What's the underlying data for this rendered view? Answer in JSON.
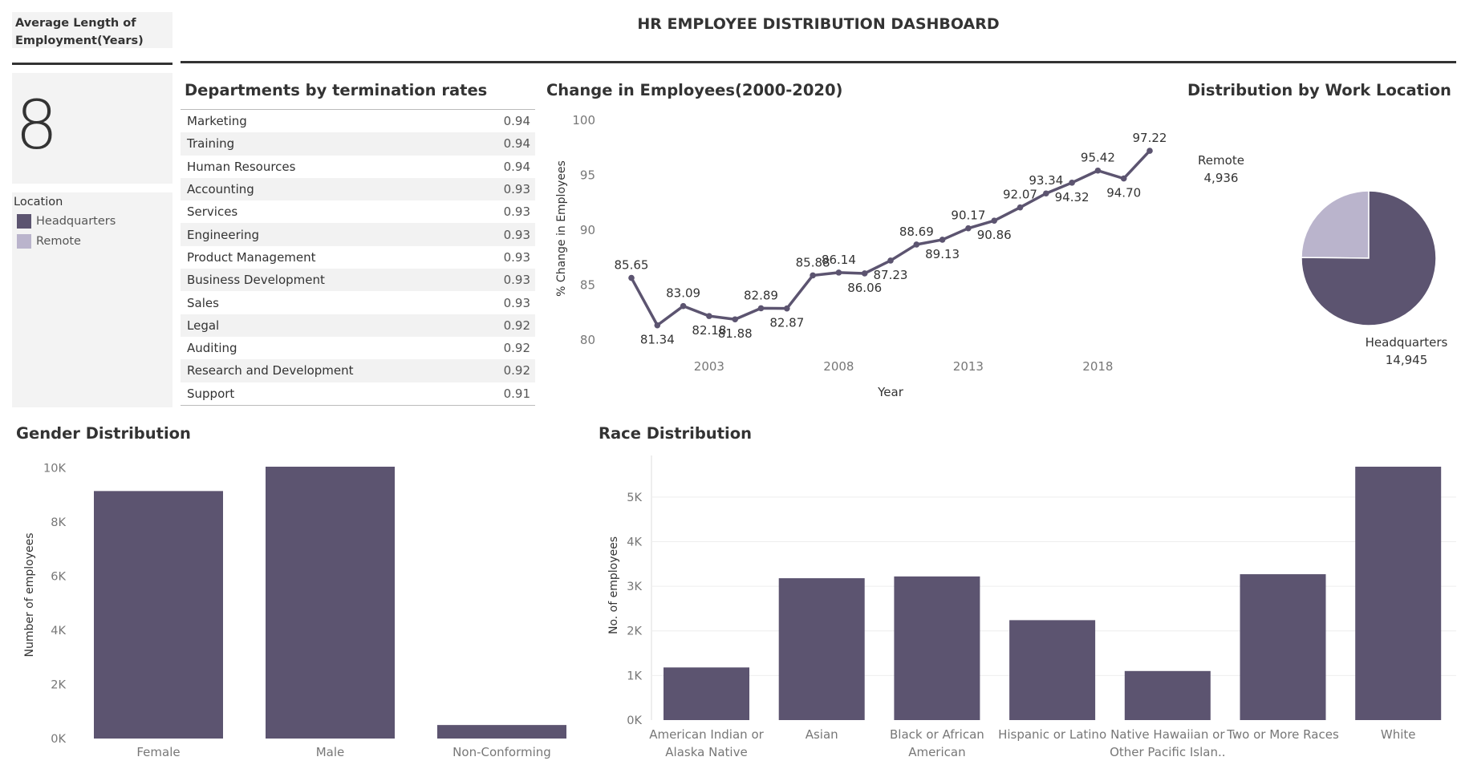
{
  "header": {
    "title": "HR EMPLOYEE DISTRIBUTION DASHBOARD"
  },
  "kpi": {
    "label": "Average Length of Employment(Years)",
    "label_line1": "Average Length of",
    "label_line2": "Employment(Years)",
    "value": "8"
  },
  "legend": {
    "title": "Location",
    "items": [
      {
        "label": "Headquarters",
        "color": "#5c5470"
      },
      {
        "label": "Remote",
        "color": "#bab4cc"
      }
    ]
  },
  "departments": {
    "title": "Departments by termination rates",
    "rows": [
      {
        "name": "Marketing",
        "value": "0.94"
      },
      {
        "name": "Training",
        "value": "0.94"
      },
      {
        "name": "Human Resources",
        "value": "0.94"
      },
      {
        "name": "Accounting",
        "value": "0.93"
      },
      {
        "name": "Services",
        "value": "0.93"
      },
      {
        "name": "Engineering",
        "value": "0.93"
      },
      {
        "name": "Product Management",
        "value": "0.93"
      },
      {
        "name": "Business Development",
        "value": "0.93"
      },
      {
        "name": "Sales",
        "value": "0.93"
      },
      {
        "name": "Legal",
        "value": "0.92"
      },
      {
        "name": "Auditing",
        "value": "0.92"
      },
      {
        "name": "Research and Development",
        "value": "0.92"
      },
      {
        "name": "Support",
        "value": "0.91"
      }
    ]
  },
  "chart_data": [
    {
      "id": "employee_change",
      "type": "line",
      "title": "Change in Employees(2000-2020)",
      "xlabel": "Year",
      "ylabel": "% Change in Employees",
      "x": [
        2000,
        2001,
        2002,
        2003,
        2004,
        2005,
        2006,
        2007,
        2008,
        2009,
        2010,
        2011,
        2012,
        2013,
        2014,
        2015,
        2016,
        2017,
        2018,
        2019,
        2020
      ],
      "values": [
        85.65,
        81.34,
        83.09,
        82.18,
        81.88,
        82.89,
        82.87,
        85.88,
        86.14,
        86.06,
        87.23,
        88.69,
        89.13,
        90.17,
        90.86,
        92.07,
        93.34,
        94.32,
        95.42,
        94.7,
        97.22
      ],
      "labels": [
        "85.65",
        "81.34",
        "83.09",
        "82.18",
        "81.88",
        "82.89",
        "82.87",
        "85.88",
        "86.14",
        "86.06",
        "87.23",
        "88.69",
        "89.13",
        "90.17",
        "90.86",
        "92.07",
        "93.34",
        "94.32",
        "95.42",
        "94.70",
        "97.22"
      ],
      "label_pos": [
        "above",
        "below",
        "above",
        "below",
        "below",
        "above",
        "below",
        "above",
        "above",
        "below",
        "below",
        "above",
        "below",
        "above",
        "below",
        "above",
        "above",
        "below",
        "above",
        "below",
        "above"
      ],
      "ylim": [
        80,
        100
      ],
      "yticks": [
        80,
        85,
        90,
        95,
        100
      ],
      "xticks": [
        2003,
        2008,
        2013,
        2018
      ],
      "color": "#5c5470"
    },
    {
      "id": "work_location",
      "type": "pie",
      "title": "Distribution by Work Location",
      "slices": [
        {
          "label": "Headquarters",
          "value": 14945,
          "display": "14,945",
          "color": "#5c5470"
        },
        {
          "label": "Remote",
          "value": 4936,
          "display": "4,936",
          "color": "#bab4cc"
        }
      ]
    },
    {
      "id": "gender",
      "type": "bar",
      "title": "Gender Distribution",
      "ylabel": "Number of employees",
      "categories": [
        "Female",
        "Male",
        "Non-Conforming"
      ],
      "values": [
        9150,
        10050,
        500
      ],
      "ylim": [
        0,
        10050
      ],
      "yticks": [
        0,
        2000,
        4000,
        6000,
        8000,
        10000
      ],
      "ytick_labels": [
        "0K",
        "2K",
        "4K",
        "6K",
        "8K",
        "10K"
      ],
      "color": "#5c5470"
    },
    {
      "id": "race",
      "type": "bar",
      "title": "Race Distribution",
      "ylabel": "No. of employees",
      "categories": [
        "American Indian or Alaska Native",
        "Asian",
        "Black or African American",
        "Hispanic or Latino",
        "Native Hawaiian or Other Pacific Islan..",
        "Two or More Races",
        "White"
      ],
      "category_lines": [
        [
          "American Indian or",
          "Alaska Native"
        ],
        [
          "Asian"
        ],
        [
          "Black or African",
          "American"
        ],
        [
          "Hispanic or Latino"
        ],
        [
          "Native Hawaiian or",
          "Other Pacific Islan.."
        ],
        [
          "Two or More Races"
        ],
        [
          "White"
        ]
      ],
      "values": [
        1180,
        3180,
        3220,
        2240,
        1100,
        3270,
        5680
      ],
      "ylim": [
        0,
        5680
      ],
      "yticks": [
        0,
        1000,
        2000,
        3000,
        4000,
        5000
      ],
      "ytick_labels": [
        "0K",
        "1K",
        "2K",
        "3K",
        "4K",
        "5K"
      ],
      "color": "#5c5470"
    }
  ]
}
